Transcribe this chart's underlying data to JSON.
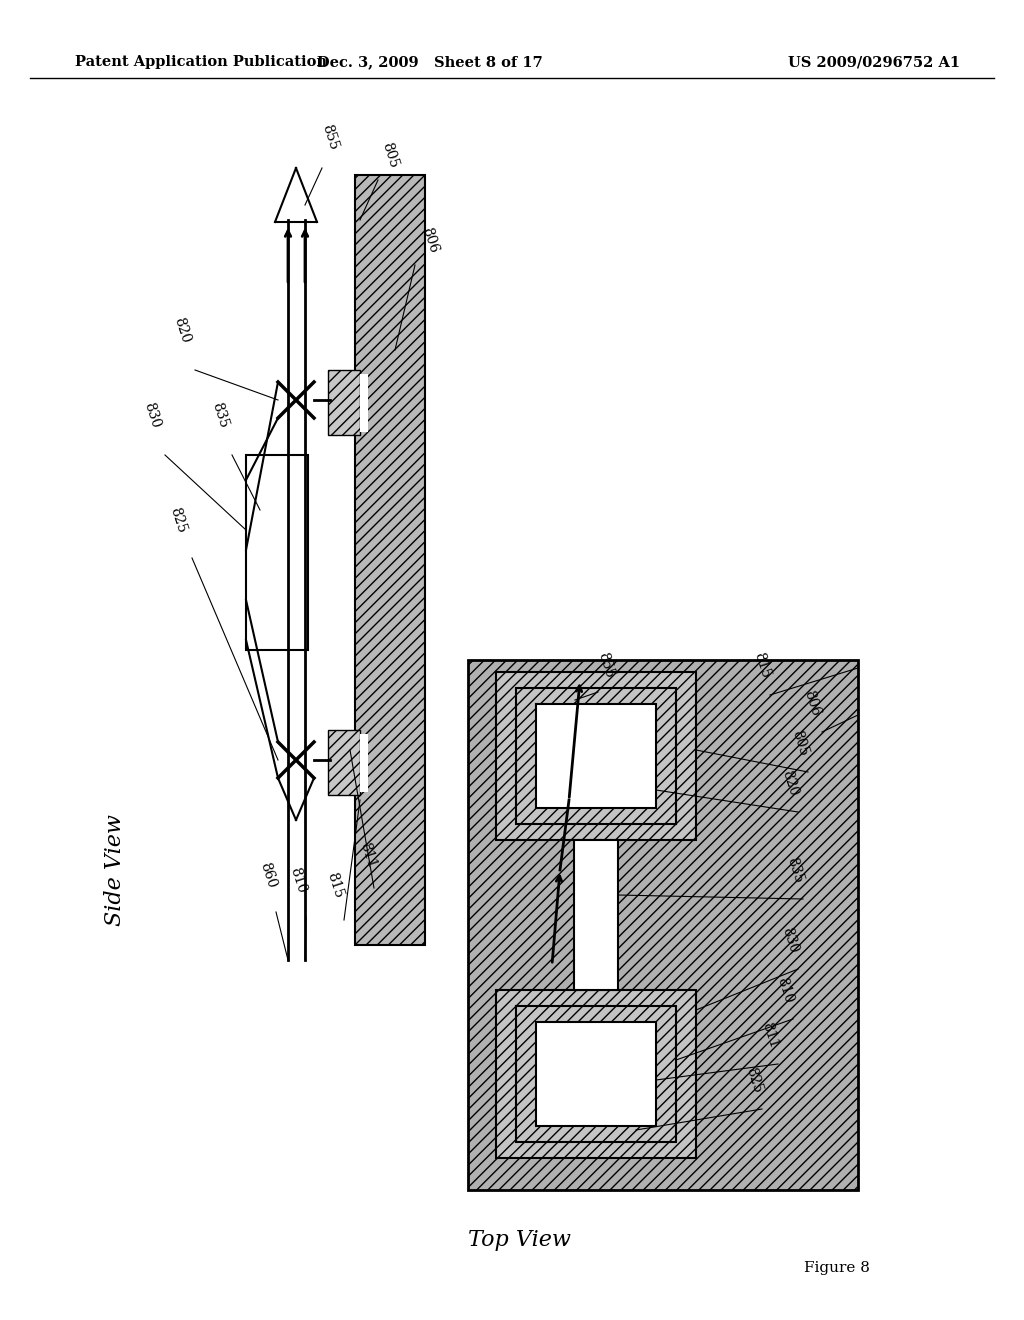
{
  "title_left": "Patent Application Publication",
  "title_mid": "Dec. 3, 2009   Sheet 8 of 17",
  "title_right": "US 2009/0296752 A1",
  "figure_label": "Figure 8",
  "bg_color": "#ffffff",
  "side_view_label": "Side View",
  "top_view_label": "Top View",
  "hatch_gray": "#aaaaaa",
  "hatch_light": "#cccccc"
}
